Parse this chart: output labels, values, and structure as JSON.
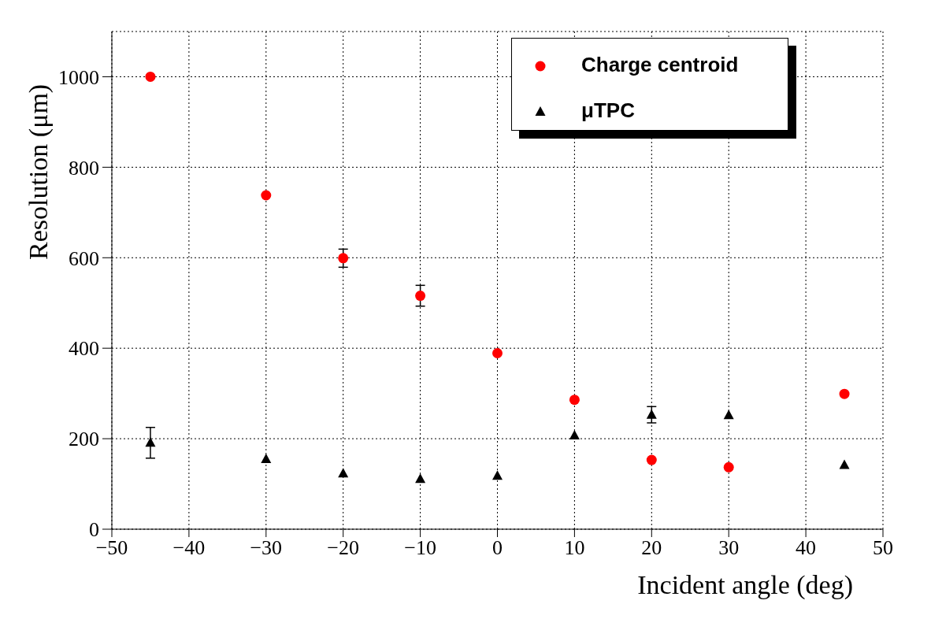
{
  "chart_data": {
    "type": "scatter",
    "xlabel": "Incident angle (deg)",
    "ylabel": "Resolution (μm)",
    "x": [
      -45,
      -30,
      -20,
      -10,
      0,
      10,
      20,
      30,
      45
    ],
    "series": [
      {
        "name": "Charge centroid",
        "color": "#ff0000",
        "marker": "circle",
        "values": [
          1000,
          738,
          599,
          516,
          389,
          286,
          153,
          137,
          299
        ],
        "errors": [
          null,
          null,
          20,
          23,
          null,
          null,
          null,
          null,
          null
        ]
      },
      {
        "name": "μTPC",
        "color": "#000000",
        "marker": "triangle",
        "values": [
          191,
          155,
          123,
          111,
          118,
          207,
          253,
          252,
          142
        ],
        "errors": [
          34,
          null,
          null,
          null,
          null,
          null,
          18,
          null,
          null
        ]
      }
    ],
    "xlim": [
      -50,
      50
    ],
    "xticks": [
      -50,
      -40,
      -30,
      -20,
      -10,
      0,
      10,
      20,
      30,
      40,
      50
    ],
    "ylim": [
      0,
      1100
    ],
    "yticks": [
      0,
      200,
      400,
      600,
      800,
      1000
    ],
    "grid": true,
    "legend": "top right"
  }
}
